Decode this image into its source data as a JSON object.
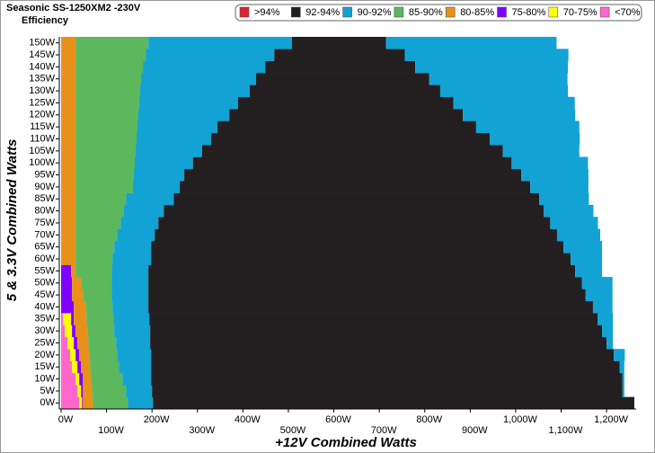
{
  "chart_data": {
    "type": "bar",
    "orientation": "horizontal",
    "stacked": true,
    "title": "Seasonic  SS-1250XM2 -230V",
    "subtitle": "Efficiency",
    "x_label": "+12V Combined Watts",
    "y_label": "5 & 3.3V Combined Watts",
    "legend": [
      {
        "name": ">94%",
        "color": "#e02030"
      },
      {
        "name": "92-94%",
        "color": "#231f20"
      },
      {
        "name": "90-92%",
        "color": "#12a2d4"
      },
      {
        "name": "85-90%",
        "color": "#5cb85c"
      },
      {
        "name": "80-85%",
        "color": "#e8901a"
      },
      {
        "name": "75-80%",
        "color": "#8000ff"
      },
      {
        "name": "70-75%",
        "color": "#ffff00"
      },
      {
        "name": "<70%",
        "color": "#ff66cc"
      }
    ],
    "categories": [
      "0W",
      "5W",
      "10W",
      "15W",
      "20W",
      "25W",
      "30W",
      "35W",
      "40W",
      "45W",
      "50W",
      "55W",
      "60W",
      "65W",
      "70W",
      "75W",
      "80W",
      "85W",
      "90W",
      "95W",
      "100W",
      "105W",
      "110W",
      "115W",
      "120W",
      "125W",
      "130W",
      "135W",
      "140W",
      "145W",
      "150W"
    ],
    "series": [
      {
        "color": "#ff66cc",
        "values": [
          40,
          36,
          32,
          24,
          20,
          14,
          8,
          4,
          0,
          0,
          0,
          0,
          0,
          0,
          0,
          0,
          0,
          0,
          0,
          0,
          0,
          0,
          0,
          0,
          0,
          0,
          0,
          0,
          0,
          0,
          0
        ]
      },
      {
        "color": "#ffff00",
        "values": [
          6,
          8,
          8,
          12,
          12,
          14,
          16,
          18,
          0,
          0,
          0,
          0,
          0,
          0,
          0,
          0,
          0,
          0,
          0,
          0,
          0,
          0,
          0,
          0,
          0,
          0,
          0,
          0,
          0,
          0,
          0
        ]
      },
      {
        "color": "#8000ff",
        "values": [
          2,
          4,
          8,
          8,
          8,
          8,
          8,
          6,
          28,
          24,
          24,
          22,
          0,
          0,
          0,
          0,
          0,
          0,
          0,
          0,
          0,
          0,
          0,
          0,
          0,
          0,
          0,
          0,
          0,
          0,
          0
        ]
      },
      {
        "color": "#e8901a",
        "values": [
          22,
          20,
          18,
          20,
          22,
          24,
          26,
          28,
          26,
          24,
          20,
          10,
          32,
          32,
          32,
          32,
          32,
          32,
          32,
          32,
          32,
          32,
          32,
          32,
          32,
          32,
          32,
          32,
          32,
          32,
          32
        ]
      },
      {
        "color": "#5cb85c",
        "values": [
          77,
          75,
          69,
          63,
          61,
          61,
          59,
          59,
          59,
          63,
          67,
          79,
          81,
          85,
          91,
          99,
          105,
          111,
          126,
          128,
          130,
          132,
          134,
          136,
          138,
          140,
          142,
          144,
          148,
          154,
          160
        ]
      },
      {
        "color": "#12a2d4",
        "values": [
          55,
          57,
          63,
          71,
          75,
          75,
          79,
          79,
          79,
          81,
          81,
          81,
          85,
          81,
          83,
          83,
          89,
          105,
          103,
          111,
          128,
          146,
          164,
          176,
          200,
          217,
          241,
          253,
          269,
          283,
          316
        ]
      },
      {
        "color": "#231f20",
        "values": [
          1059,
          1035,
          1037,
          1031,
          1018,
          1004,
          994,
          986,
          978,
          962,
          954,
          939,
          923,
          907,
          885,
          862,
          836,
          804,
          771,
          741,
          701,
          662,
          613,
          569,
          514,
          474,
          419,
          381,
          330,
          287,
          207
        ]
      },
      {
        "color": "#12a2d4",
        "values": [
          0,
          4,
          4,
          10,
          24,
          14,
          24,
          34,
          43,
          59,
          67,
          59,
          69,
          85,
          95,
          105,
          109,
          109,
          128,
          148,
          168,
          168,
          198,
          227,
          247,
          267,
          281,
          304,
          336,
          360,
          375
        ]
      }
    ],
    "xlim": [
      0,
      1265
    ],
    "xticks": [
      {
        "value": 0,
        "label": "0W"
      },
      {
        "value": 100,
        "label": "100W"
      },
      {
        "value": 200,
        "label": "200W"
      },
      {
        "value": 300,
        "label": "300W"
      },
      {
        "value": 400,
        "label": "400W"
      },
      {
        "value": 500,
        "label": "500W"
      },
      {
        "value": 600,
        "label": "600W"
      },
      {
        "value": 700,
        "label": "700W"
      },
      {
        "value": 800,
        "label": "800W"
      },
      {
        "value": 900,
        "label": "900W"
      },
      {
        "value": 1000,
        "label": "1,000W"
      },
      {
        "value": 1100,
        "label": "1,100W"
      },
      {
        "value": 1200,
        "label": "1,200W"
      }
    ]
  }
}
